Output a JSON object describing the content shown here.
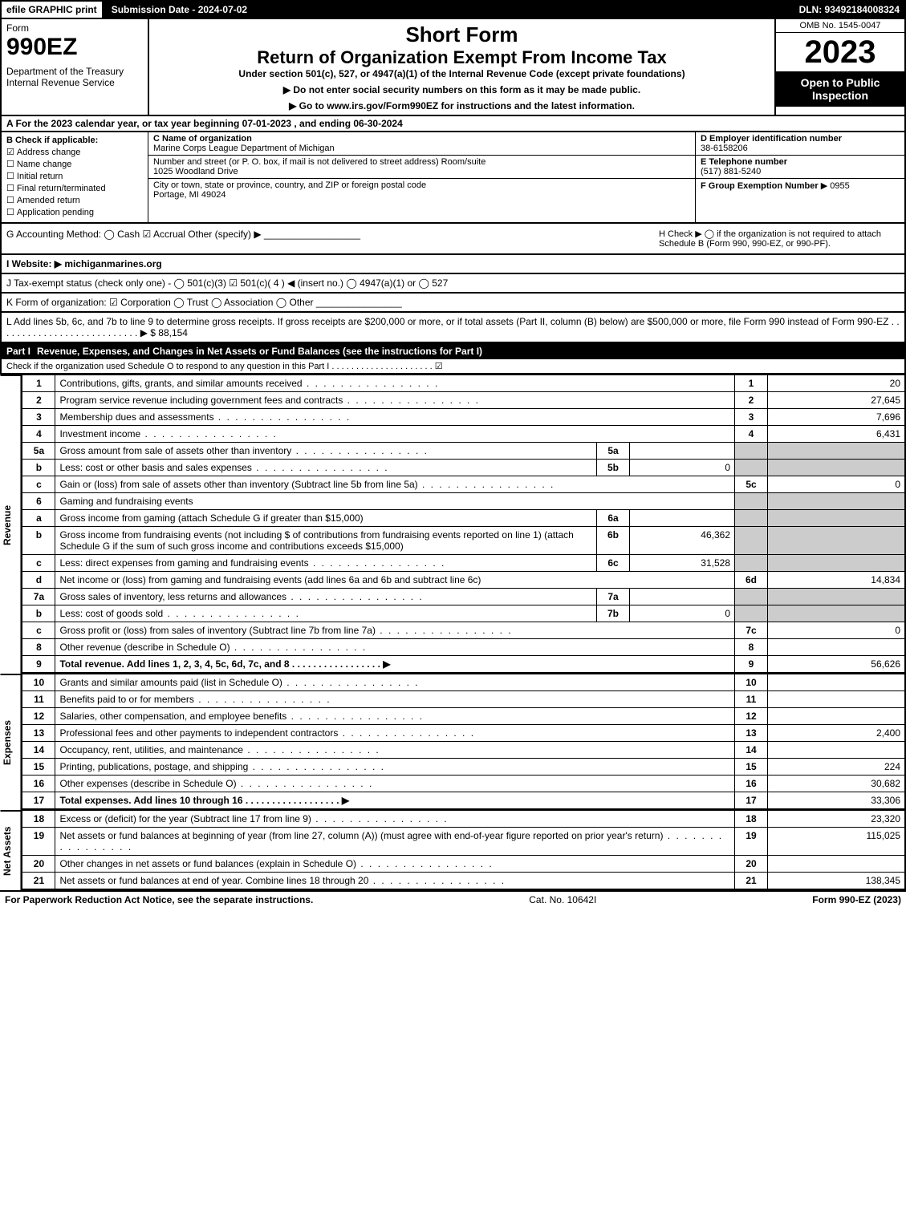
{
  "topbar": {
    "efile": "efile GRAPHIC print",
    "sub_label": "Submission Date - 2024-07-02",
    "dln": "DLN: 93492184008324"
  },
  "header": {
    "form": "Form",
    "form_num": "990EZ",
    "dept": "Department of the Treasury\nInternal Revenue Service",
    "short": "Short Form",
    "title": "Return of Organization Exempt From Income Tax",
    "under": "Under section 501(c), 527, or 4947(a)(1) of the Internal Revenue Code (except private foundations)",
    "inst1": "▶ Do not enter social security numbers on this form as it may be made public.",
    "inst2": "▶ Go to www.irs.gov/Form990EZ for instructions and the latest information.",
    "omb": "OMB No. 1545-0047",
    "year": "2023",
    "open": "Open to Public Inspection"
  },
  "line_a": "A  For the 2023 calendar year, or tax year beginning 07-01-2023 , and ending 06-30-2024",
  "box_b": {
    "title": "B  Check if applicable:",
    "items": [
      "Address change",
      "Name change",
      "Initial return",
      "Final return/terminated",
      "Amended return",
      "Application pending"
    ]
  },
  "box_c": {
    "name_lbl": "C Name of organization",
    "name_val": "Marine Corps League Department of Michigan",
    "addr_lbl": "Number and street (or P. O. box, if mail is not delivered to street address)       Room/suite",
    "addr_val": "1025 Woodland Drive",
    "city_lbl": "City or town, state or province, country, and ZIP or foreign postal code",
    "city_val": "Portage, MI  49024"
  },
  "box_d": {
    "lbl": "D Employer identification number",
    "val": "38-6158206"
  },
  "box_e": {
    "lbl": "E Telephone number",
    "val": "(517) 881-5240"
  },
  "box_f": {
    "lbl": "F Group Exemption Number",
    "val": "▶ 0955"
  },
  "box_g": "G Accounting Method:   ◯ Cash   ☑ Accrual   Other (specify) ▶ __________________",
  "box_h": "H   Check ▶  ◯  if the organization is not required to attach Schedule B (Form 990, 990-EZ, or 990-PF).",
  "box_i": "I Website: ▶ michiganmarines.org",
  "box_j": "J Tax-exempt status (check only one) -  ◯ 501(c)(3)  ☑  501(c)( 4 ) ◀ (insert no.)  ◯  4947(a)(1) or  ◯  527",
  "box_k": "K Form of organization:   ☑ Corporation   ◯ Trust   ◯ Association   ◯ Other  ________________",
  "box_l": "L Add lines 5b, 6c, and 7b to line 9 to determine gross receipts. If gross receipts are $200,000 or more, or if total assets (Part II, column (B) below) are $500,000 or more, file Form 990 instead of Form 990-EZ  .  .  .  .  .  .  .  .  .  .  .  .  .  .  .  .  .  .  .  .  .  .  .  .  .  .  .  ▶ $ 88,154",
  "part1": {
    "label": "Part I",
    "title": "Revenue, Expenses, and Changes in Net Assets or Fund Balances (see the instructions for Part I)",
    "sub": "Check if the organization used Schedule O to respond to any question in this Part I  .  .  .  .  .  .  .  .  .  .  .  .  .  .  .  .  .  .  .  .  .   ☑"
  },
  "revenue_label": "Revenue",
  "expenses_label": "Expenses",
  "netassets_label": "Net Assets",
  "lines": {
    "l1": {
      "n": "1",
      "d": "Contributions, gifts, grants, and similar amounts received",
      "ln": "1",
      "v": "20"
    },
    "l2": {
      "n": "2",
      "d": "Program service revenue including government fees and contracts",
      "ln": "2",
      "v": "27,645"
    },
    "l3": {
      "n": "3",
      "d": "Membership dues and assessments",
      "ln": "3",
      "v": "7,696"
    },
    "l4": {
      "n": "4",
      "d": "Investment income",
      "ln": "4",
      "v": "6,431"
    },
    "l5a": {
      "n": "5a",
      "d": "Gross amount from sale of assets other than inventory",
      "mn": "5a",
      "mv": ""
    },
    "l5b": {
      "n": "b",
      "d": "Less: cost or other basis and sales expenses",
      "mn": "5b",
      "mv": "0"
    },
    "l5c": {
      "n": "c",
      "d": "Gain or (loss) from sale of assets other than inventory (Subtract line 5b from line 5a)",
      "ln": "5c",
      "v": "0"
    },
    "l6": {
      "n": "6",
      "d": "Gaming and fundraising events"
    },
    "l6a": {
      "n": "a",
      "d": "Gross income from gaming (attach Schedule G if greater than $15,000)",
      "mn": "6a",
      "mv": ""
    },
    "l6b": {
      "n": "b",
      "d": "Gross income from fundraising events (not including $                          of contributions from fundraising events reported on line 1) (attach Schedule G if the sum of such gross income and contributions exceeds $15,000)",
      "mn": "6b",
      "mv": "46,362"
    },
    "l6c": {
      "n": "c",
      "d": "Less: direct expenses from gaming and fundraising events",
      "mn": "6c",
      "mv": "31,528"
    },
    "l6d": {
      "n": "d",
      "d": "Net income or (loss) from gaming and fundraising events (add lines 6a and 6b and subtract line 6c)",
      "ln": "6d",
      "v": "14,834"
    },
    "l7a": {
      "n": "7a",
      "d": "Gross sales of inventory, less returns and allowances",
      "mn": "7a",
      "mv": ""
    },
    "l7b": {
      "n": "b",
      "d": "Less: cost of goods sold",
      "mn": "7b",
      "mv": "0"
    },
    "l7c": {
      "n": "c",
      "d": "Gross profit or (loss) from sales of inventory (Subtract line 7b from line 7a)",
      "ln": "7c",
      "v": "0"
    },
    "l8": {
      "n": "8",
      "d": "Other revenue (describe in Schedule O)",
      "ln": "8",
      "v": ""
    },
    "l9": {
      "n": "9",
      "d": "Total revenue. Add lines 1, 2, 3, 4, 5c, 6d, 7c, and 8  .  .  .  .  .  .  .  .  .  .  .  .  .  .  .  .  .  ▶",
      "ln": "9",
      "v": "56,626"
    },
    "l10": {
      "n": "10",
      "d": "Grants and similar amounts paid (list in Schedule O)",
      "ln": "10",
      "v": ""
    },
    "l11": {
      "n": "11",
      "d": "Benefits paid to or for members",
      "ln": "11",
      "v": ""
    },
    "l12": {
      "n": "12",
      "d": "Salaries, other compensation, and employee benefits",
      "ln": "12",
      "v": ""
    },
    "l13": {
      "n": "13",
      "d": "Professional fees and other payments to independent contractors",
      "ln": "13",
      "v": "2,400"
    },
    "l14": {
      "n": "14",
      "d": "Occupancy, rent, utilities, and maintenance",
      "ln": "14",
      "v": ""
    },
    "l15": {
      "n": "15",
      "d": "Printing, publications, postage, and shipping",
      "ln": "15",
      "v": "224"
    },
    "l16": {
      "n": "16",
      "d": "Other expenses (describe in Schedule O)",
      "ln": "16",
      "v": "30,682"
    },
    "l17": {
      "n": "17",
      "d": "Total expenses. Add lines 10 through 16  .  .  .  .  .  .  .  .  .  .  .  .  .  .  .  .  .  .  ▶",
      "ln": "17",
      "v": "33,306"
    },
    "l18": {
      "n": "18",
      "d": "Excess or (deficit) for the year (Subtract line 17 from line 9)",
      "ln": "18",
      "v": "23,320"
    },
    "l19": {
      "n": "19",
      "d": "Net assets or fund balances at beginning of year (from line 27, column (A)) (must agree with end-of-year figure reported on prior year's return)",
      "ln": "19",
      "v": "115,025"
    },
    "l20": {
      "n": "20",
      "d": "Other changes in net assets or fund balances (explain in Schedule O)",
      "ln": "20",
      "v": ""
    },
    "l21": {
      "n": "21",
      "d": "Net assets or fund balances at end of year. Combine lines 18 through 20",
      "ln": "21",
      "v": "138,345"
    }
  },
  "footer": {
    "left": "For Paperwork Reduction Act Notice, see the separate instructions.",
    "mid": "Cat. No. 10642I",
    "right": "Form 990-EZ (2023)"
  }
}
